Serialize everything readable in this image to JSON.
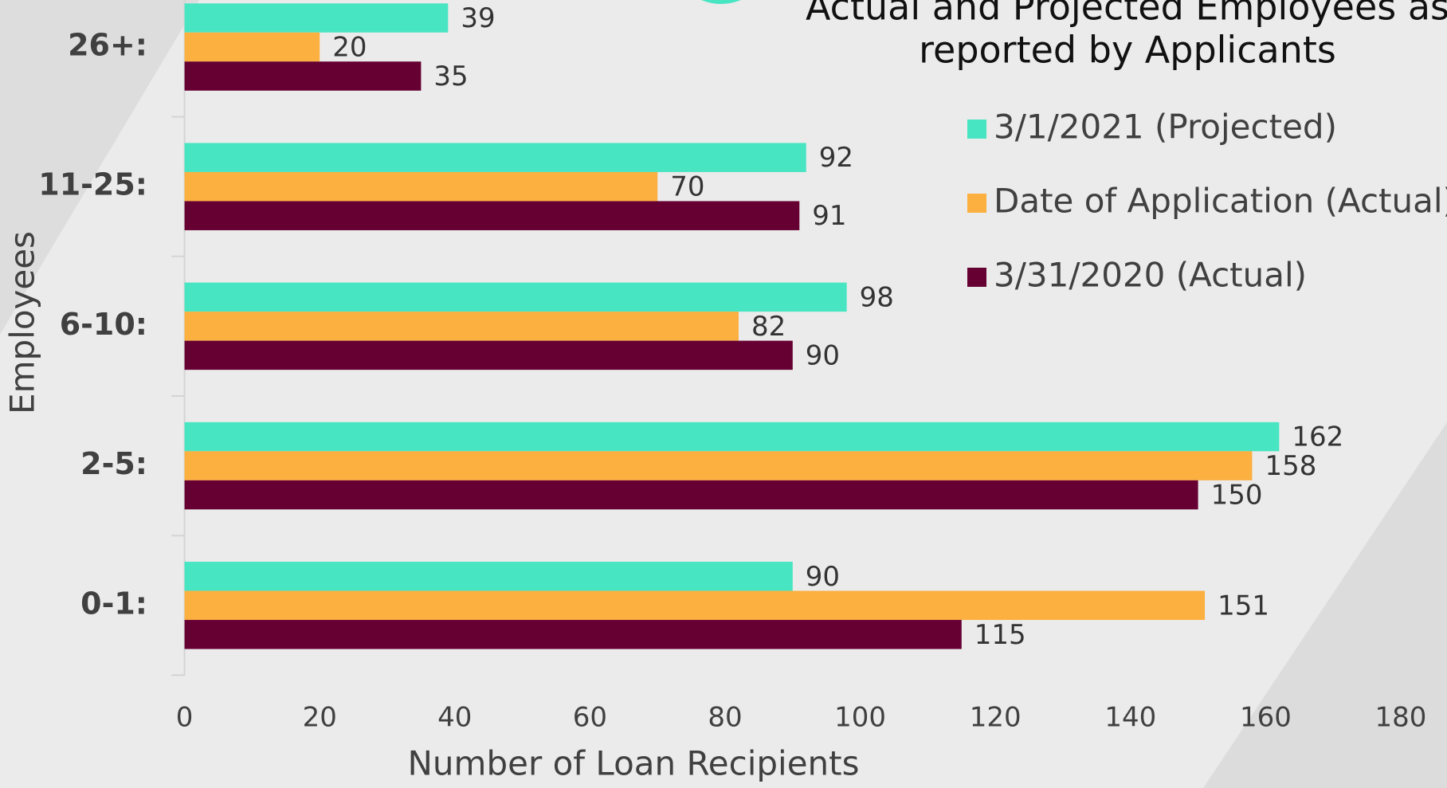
{
  "chart_data": {
    "type": "barh",
    "title": [
      "Actual and Projected Employees as",
      "reported by Applicants"
    ],
    "xlabel": "Number of Loan Recipients",
    "ylabel": "Employees",
    "categories": [
      "26+:",
      "11-25:",
      "6-10:",
      "2-5:",
      "0-1:"
    ],
    "series": [
      {
        "name": "3/1/2021 (Projected)",
        "color": "#48e5c2",
        "values": [
          39,
          92,
          98,
          162,
          90
        ]
      },
      {
        "name": "Date of Application (Actual)",
        "color": "#fbb040",
        "values": [
          20,
          70,
          82,
          158,
          151
        ]
      },
      {
        "name": "3/31/2020 (Actual)",
        "color": "#660033",
        "values": [
          35,
          91,
          90,
          150,
          115
        ]
      }
    ],
    "xlim": [
      0,
      180
    ],
    "xticks": [
      0,
      20,
      40,
      60,
      80,
      100,
      120,
      140,
      160,
      180
    ],
    "legend": "upper right"
  }
}
